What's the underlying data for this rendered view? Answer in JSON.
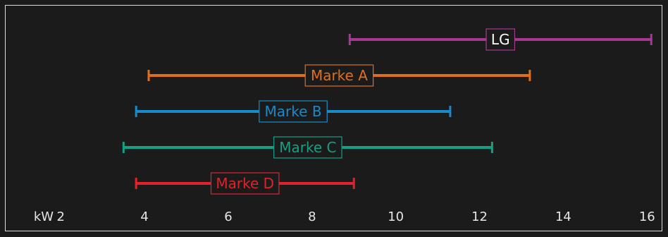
{
  "chart_data": {
    "type": "range",
    "unit_label": "kW",
    "x_ticks": [
      2,
      4,
      6,
      8,
      10,
      12,
      14,
      16
    ],
    "xlim": [
      0.55,
      16.5
    ],
    "series": [
      {
        "name": "LG",
        "min": 8.9,
        "max": 16.1,
        "color": "#a6398f"
      },
      {
        "name": "Marke A",
        "min": 4.1,
        "max": 13.2,
        "color": "#e06f1a"
      },
      {
        "name": "Marke B",
        "min": 3.8,
        "max": 11.3,
        "color": "#1a8bc8"
      },
      {
        "name": "Marke C",
        "min": 3.5,
        "max": 12.3,
        "color": "#13a085"
      },
      {
        "name": "Marke D",
        "min": 3.8,
        "max": 9.0,
        "color": "#e0232a"
      }
    ],
    "background": "#1b1b1b",
    "frame_color": "#dcdcdc",
    "label_box_fill": "#1b1b1b"
  }
}
